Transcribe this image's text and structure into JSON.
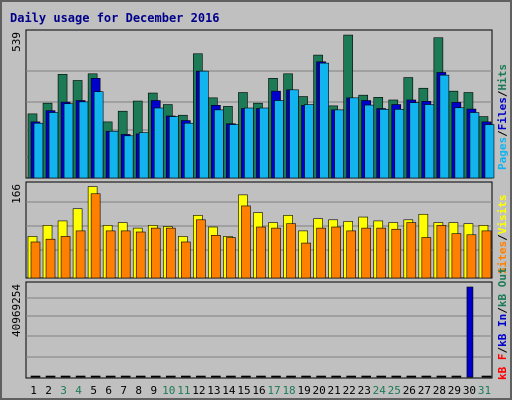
{
  "title": "Daily usage for December 2016",
  "colors": {
    "hits": "#1c7a56",
    "files": "#0000cc",
    "pages": "#11b4ee",
    "visits": "#ffff00",
    "sites": "#ff8000",
    "kb_in": "#0000cc",
    "kb_out": "#1c7a56",
    "kb_f": "#ff0000",
    "weekend": "#1c7a56",
    "weekday": "#000000"
  },
  "legend": {
    "top": [
      "Pages",
      "/",
      "Files",
      "/",
      "Hits"
    ],
    "mid": [
      "Sites",
      "/",
      "Visits"
    ],
    "bot": [
      "kB F",
      "/",
      "kB In",
      "/",
      "kB Out"
    ]
  },
  "chart_data": [
    {
      "type": "bar",
      "panel": "hits-files-pages",
      "ymax_label": "539",
      "ylim": [
        0,
        539
      ],
      "categories": [
        "1",
        "2",
        "3",
        "4",
        "5",
        "6",
        "7",
        "8",
        "9",
        "10",
        "11",
        "12",
        "13",
        "14",
        "15",
        "16",
        "17",
        "18",
        "19",
        "20",
        "21",
        "22",
        "23",
        "24",
        "25",
        "26",
        "27",
        "28",
        "29",
        "30",
        "31"
      ],
      "weekend_days": [
        "3",
        "4",
        "10",
        "11",
        "17",
        "18",
        "24",
        "25",
        "31"
      ],
      "series": [
        {
          "name": "Hits",
          "values": [
            240,
            280,
            388,
            365,
            390,
            210,
            250,
            288,
            318,
            275,
            235,
            465,
            300,
            268,
            320,
            280,
            373,
            390,
            305,
            460,
            270,
            535,
            310,
            302,
            292,
            376,
            336,
            525,
            325,
            320,
            230
          ]
        },
        {
          "name": "Files",
          "values": [
            210,
            252,
            284,
            290,
            373,
            175,
            163,
            165,
            290,
            232,
            215,
            400,
            272,
            203,
            260,
            260,
            325,
            330,
            272,
            435,
            255,
            300,
            290,
            260,
            275,
            292,
            287,
            395,
            283,
            258,
            210
          ]
        },
        {
          "name": "Pages",
          "values": [
            205,
            245,
            278,
            285,
            323,
            175,
            158,
            170,
            262,
            230,
            205,
            400,
            255,
            200,
            262,
            262,
            290,
            330,
            275,
            430,
            255,
            300,
            273,
            257,
            257,
            282,
            275,
            385,
            263,
            245,
            200
          ]
        }
      ]
    },
    {
      "type": "bar",
      "panel": "visits-sites",
      "ymax_label": "166",
      "ylim": [
        0,
        166
      ],
      "categories": [
        "1",
        "2",
        "3",
        "4",
        "5",
        "6",
        "7",
        "8",
        "9",
        "10",
        "11",
        "12",
        "13",
        "14",
        "15",
        "16",
        "17",
        "18",
        "19",
        "20",
        "21",
        "22",
        "23",
        "24",
        "25",
        "26",
        "27",
        "28",
        "29",
        "30",
        "31"
      ],
      "series": [
        {
          "name": "Visits",
          "values": [
            75,
            95,
            103,
            125,
            165,
            95,
            100,
            90,
            95,
            93,
            75,
            113,
            92,
            75,
            150,
            118,
            100,
            113,
            85,
            107,
            105,
            102,
            110,
            103,
            100,
            105,
            115,
            100,
            100,
            98,
            95
          ]
        },
        {
          "name": "Sites",
          "values": [
            65,
            70,
            75,
            85,
            152,
            85,
            85,
            83,
            90,
            90,
            65,
            105,
            77,
            73,
            130,
            92,
            90,
            98,
            63,
            90,
            92,
            85,
            90,
            90,
            88,
            100,
            73,
            95,
            80,
            78,
            85
          ]
        }
      ]
    },
    {
      "type": "bar",
      "panel": "kbytes",
      "ymax_label": "40969254",
      "ylim": [
        0,
        40969254
      ],
      "categories": [
        "1",
        "2",
        "3",
        "4",
        "5",
        "6",
        "7",
        "8",
        "9",
        "10",
        "11",
        "12",
        "13",
        "14",
        "15",
        "16",
        "17",
        "18",
        "19",
        "20",
        "21",
        "22",
        "23",
        "24",
        "25",
        "26",
        "27",
        "28",
        "29",
        "30",
        "31"
      ],
      "series": [
        {
          "name": "kB In",
          "values": [
            0,
            0,
            0,
            0,
            0,
            0,
            0,
            0,
            0,
            0,
            0,
            0,
            0,
            0,
            0,
            0,
            0,
            0,
            0,
            0,
            0,
            0,
            0,
            0,
            0,
            0,
            0,
            0,
            0,
            40969254,
            0
          ]
        }
      ]
    }
  ]
}
